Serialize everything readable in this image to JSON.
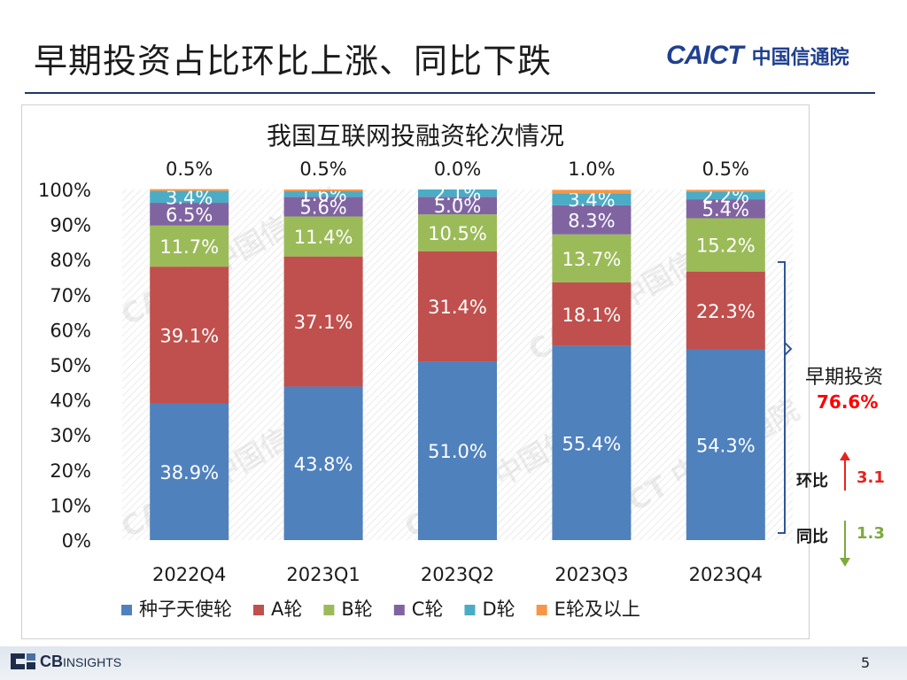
{
  "slide": {
    "title": "早期投资占比环比上涨、同比下跌",
    "logo_en": "CAICT",
    "logo_cn": "中国信通院",
    "page_number": "5",
    "footer_brand_bold": "CB",
    "footer_brand_light": "INSIGHTS"
  },
  "annotation": {
    "early_label": "早期投资",
    "early_value": "76.6%",
    "qoq_label": "环比",
    "qoq_value": "3.1",
    "yoy_label": "同比",
    "yoy_value": "1.3",
    "colors": {
      "up": "#e6231d",
      "down": "#7caa3c",
      "early": "#ff0000"
    }
  },
  "chart_data": {
    "type": "bar",
    "stacked": true,
    "title": "我国互联网投融资轮次情况",
    "categories": [
      "2022Q4",
      "2023Q1",
      "2023Q2",
      "2023Q3",
      "2023Q4"
    ],
    "ylim": [
      0,
      100
    ],
    "yticks": [
      "0%",
      "10%",
      "20%",
      "30%",
      "40%",
      "50%",
      "60%",
      "70%",
      "80%",
      "90%",
      "100%"
    ],
    "series": [
      {
        "name": "种子天使轮",
        "color": "#4f81bd",
        "values": [
          38.9,
          43.8,
          51.0,
          55.4,
          54.3
        ],
        "labels": [
          "38.9%",
          "43.8%",
          "51.0%",
          "55.4%",
          "54.3%"
        ]
      },
      {
        "name": "A轮",
        "color": "#c0504d",
        "values": [
          39.1,
          37.1,
          31.4,
          18.1,
          22.3
        ],
        "labels": [
          "39.1%",
          "37.1%",
          "31.4%",
          "18.1%",
          "22.3%"
        ]
      },
      {
        "name": "B轮",
        "color": "#9bbb59",
        "values": [
          11.7,
          11.4,
          10.5,
          13.7,
          15.2
        ],
        "labels": [
          "11.7%",
          "11.4%",
          "10.5%",
          "13.7%",
          "15.2%"
        ]
      },
      {
        "name": "C轮",
        "color": "#8064a2",
        "values": [
          6.5,
          5.6,
          5.0,
          8.3,
          5.4
        ],
        "labels": [
          "6.5%",
          "5.6%",
          "5.0%",
          "8.3%",
          "5.4%"
        ]
      },
      {
        "name": "D轮",
        "color": "#4bacc6",
        "values": [
          3.4,
          1.6,
          2.1,
          3.4,
          2.2
        ],
        "labels": [
          "3.4%",
          "1.6%",
          "2.1%",
          "3.4%",
          "2.2%"
        ]
      },
      {
        "name": "E轮及以上",
        "color": "#f79646",
        "values": [
          0.5,
          0.5,
          0.0,
          1.0,
          0.5
        ],
        "labels": [
          "0.5%",
          "0.5%",
          "0.0%",
          "1.0%",
          "0.5%"
        ]
      }
    ],
    "legend_position": "bottom",
    "watermark": "CAICT 中国信通院"
  }
}
